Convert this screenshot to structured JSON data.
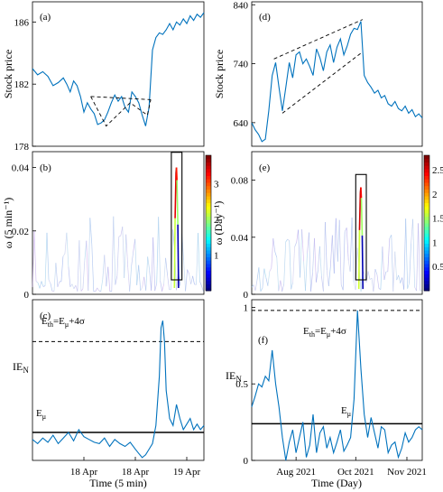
{
  "chart_data": [
    {
      "panel": "(a)",
      "type": "line",
      "ylabel": "Stock price",
      "ylim": [
        178,
        187.3
      ],
      "yticks": [
        "178",
        "182",
        "186"
      ],
      "xlim": [
        0,
        100
      ],
      "series": [
        {
          "color": "#0072bd",
          "x": [
            0,
            3,
            6,
            9,
            12,
            15,
            18,
            20,
            22,
            24,
            26,
            28,
            30,
            32,
            34,
            36,
            38,
            40,
            42,
            44,
            46,
            48,
            50,
            52,
            54,
            56,
            58,
            60,
            62,
            64,
            66,
            68,
            70,
            72,
            74,
            76,
            78,
            80,
            82,
            84,
            86,
            88,
            90,
            92,
            94,
            96,
            98,
            100
          ],
          "values": [
            183.0,
            182.6,
            182.8,
            182.5,
            181.9,
            182.1,
            182.4,
            182.0,
            181.5,
            182.2,
            181.9,
            181.2,
            180.2,
            180.8,
            180.4,
            180.1,
            179.4,
            179.5,
            179.7,
            180.2,
            180.8,
            181.3,
            180.9,
            181.2,
            180.5,
            180.2,
            181.5,
            181.2,
            180.8,
            180.0,
            179.3,
            180.5,
            184.2,
            185.0,
            185.3,
            185.2,
            185.5,
            185.9,
            185.5,
            186.0,
            185.8,
            186.2,
            185.9,
            186.4,
            186.1,
            186.5,
            186.3,
            186.6
          ]
        }
      ],
      "annotations": [
        {
          "kind": "dashed",
          "points": [
            [
              34,
              181.2
            ],
            [
              69,
              181.0
            ]
          ]
        },
        {
          "kind": "dashed",
          "points": [
            [
              34,
              181.2
            ],
            [
              43,
              179.3
            ],
            [
              57,
              180.8
            ],
            [
              67,
              180.0
            ],
            [
              69,
              181.0
            ]
          ]
        }
      ]
    },
    {
      "panel": "(d)",
      "type": "line",
      "ylabel": "Stock price",
      "ylim": [
        600,
        845
      ],
      "yticks": [
        "640",
        "740",
        "840"
      ],
      "xlim": [
        0,
        100
      ],
      "series": [
        {
          "color": "#0072bd",
          "x": [
            0,
            2,
            4,
            6,
            8,
            10,
            12,
            14,
            16,
            18,
            20,
            22,
            24,
            26,
            28,
            30,
            32,
            34,
            36,
            38,
            40,
            42,
            44,
            46,
            48,
            50,
            52,
            54,
            56,
            58,
            60,
            62,
            64,
            66,
            68,
            70,
            72,
            74,
            76,
            78,
            80,
            82,
            84,
            86,
            88,
            90,
            92,
            94,
            96,
            98,
            100
          ],
          "values": [
            640,
            628,
            620,
            608,
            612,
            660,
            720,
            742,
            700,
            660,
            700,
            742,
            716,
            755,
            760,
            740,
            748,
            735,
            720,
            765,
            750,
            728,
            760,
            772,
            742,
            768,
            782,
            755,
            770,
            790,
            800,
            798,
            812,
            720,
            708,
            700,
            690,
            695,
            682,
            686,
            672,
            668,
            676,
            664,
            660,
            668,
            656,
            662,
            650,
            655,
            648
          ]
        }
      ],
      "annotations": [
        {
          "kind": "dashed",
          "points": [
            [
              13,
              748
            ],
            [
              65,
              815
            ]
          ]
        },
        {
          "kind": "dashed",
          "points": [
            [
              18,
              656
            ],
            [
              65,
              760
            ]
          ]
        }
      ]
    },
    {
      "panel": "(b)",
      "type": "scatter",
      "ylabel": "ω (5 min⁻¹)",
      "ylim": [
        0,
        0.045
      ],
      "yticks": [
        "0",
        "0.02",
        "0.04"
      ],
      "xlim": [
        0,
        100
      ],
      "colorbar": {
        "ticks": [
          "1",
          "2",
          "3"
        ],
        "range": [
          0,
          3.8
        ]
      },
      "peak": {
        "x": 84,
        "value": 0.04,
        "color_value": 3.6
      }
    },
    {
      "panel": "(e)",
      "type": "scatter",
      "ylabel": "ω (Day⁻¹)",
      "ylim": [
        0,
        0.1
      ],
      "yticks": [
        "0",
        "0.04",
        "0.08"
      ],
      "xlim": [
        0,
        100
      ],
      "colorbar": {
        "ticks": [
          "0.5",
          "1",
          "1.5",
          "2",
          "2.5"
        ],
        "range": [
          0,
          2.8
        ]
      },
      "peak": {
        "x": 64,
        "value": 0.075,
        "color_value": 2.7
      }
    },
    {
      "panel": "(c)",
      "type": "line",
      "ylabel": "IE_N",
      "ylim": [
        0,
        1.15
      ],
      "xlim": [
        0,
        100
      ],
      "xticks": [
        {
          "x": 30,
          "label": "18 Apr"
        },
        {
          "x": 60,
          "label": "18 Apr"
        },
        {
          "x": 90,
          "label": "19 Apr"
        }
      ],
      "xlabel": "Time (5 min)",
      "threshold": {
        "value": 0.85,
        "label": "Eth=Eμ+4σ"
      },
      "mean": {
        "value": 0.2,
        "label": "Eμ"
      },
      "series": [
        {
          "color": "#0072bd",
          "x": [
            0,
            3,
            6,
            9,
            12,
            15,
            18,
            21,
            24,
            27,
            30,
            33,
            36,
            39,
            42,
            45,
            48,
            51,
            54,
            57,
            60,
            62,
            64,
            66,
            68,
            70,
            72,
            74,
            75,
            76,
            77,
            78,
            80,
            82,
            84,
            86,
            88,
            90,
            92,
            94,
            96,
            98,
            100
          ],
          "values": [
            0.15,
            0.12,
            0.16,
            0.13,
            0.18,
            0.12,
            0.16,
            0.2,
            0.14,
            0.22,
            0.17,
            0.15,
            0.13,
            0.12,
            0.16,
            0.1,
            0.15,
            0.12,
            0.1,
            0.13,
            0.08,
            0.05,
            0.02,
            0.04,
            0.08,
            0.12,
            0.25,
            0.6,
            0.95,
            1.0,
            0.85,
            0.5,
            0.3,
            0.25,
            0.4,
            0.3,
            0.22,
            0.26,
            0.3,
            0.22,
            0.26,
            0.22,
            0.25
          ]
        }
      ]
    },
    {
      "panel": "(f)",
      "type": "line",
      "ylabel": "IE_N",
      "ylim": [
        0,
        1.05
      ],
      "yticks": [
        "0",
        "0.5",
        "1"
      ],
      "xlim": [
        0,
        100
      ],
      "xticks": [
        {
          "x": 26,
          "label": "Aug 2021"
        },
        {
          "x": 61,
          "label": "Oct 2021"
        },
        {
          "x": 91,
          "label": "Nov 2021"
        }
      ],
      "xlabel": "Time (Day)",
      "threshold": {
        "value": 0.98,
        "label": "Eth=Eμ+4σ"
      },
      "mean": {
        "value": 0.24,
        "label": "Eμ"
      },
      "series": [
        {
          "color": "#0072bd",
          "x": [
            0,
            2,
            4,
            6,
            8,
            10,
            12,
            14,
            16,
            18,
            20,
            22,
            24,
            26,
            28,
            30,
            32,
            34,
            36,
            38,
            40,
            42,
            44,
            46,
            48,
            50,
            52,
            54,
            56,
            58,
            60,
            62,
            64,
            66,
            68,
            70,
            72,
            74,
            76,
            78,
            80,
            82,
            84,
            86,
            88,
            90,
            92,
            94,
            96,
            98,
            100
          ],
          "values": [
            0.35,
            0.42,
            0.5,
            0.48,
            0.55,
            0.52,
            0.72,
            0.5,
            0.35,
            0.15,
            0.0,
            0.12,
            0.2,
            0.05,
            0.15,
            0.25,
            0.02,
            0.1,
            0.3,
            0.05,
            0.18,
            0.22,
            0.08,
            0.15,
            0.05,
            0.12,
            0.2,
            0.06,
            0.1,
            0.15,
            0.4,
            0.98,
            0.6,
            0.3,
            0.15,
            0.28,
            0.18,
            0.08,
            0.22,
            0.2,
            0.05,
            0.1,
            0.12,
            0.02,
            0.08,
            0.18,
            0.12,
            0.15,
            0.2,
            0.22,
            0.2
          ]
        }
      ]
    }
  ]
}
